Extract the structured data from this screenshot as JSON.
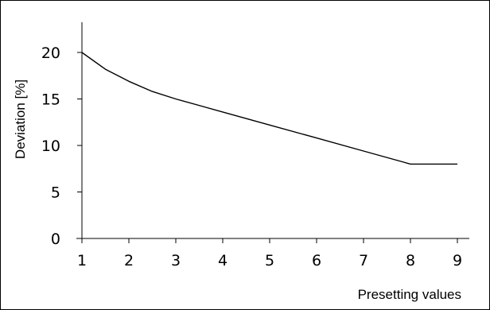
{
  "chart_data": {
    "type": "line",
    "title": "",
    "xlabel": "Presetting values",
    "ylabel": "Deviation [%]",
    "xlim": [
      1,
      9
    ],
    "ylim": [
      0,
      20
    ],
    "x_ticks": [
      "1",
      "2",
      "3",
      "4",
      "5",
      "6",
      "7",
      "8",
      "9"
    ],
    "y_ticks": [
      "0",
      "5",
      "10",
      "15",
      "20"
    ],
    "grid": false,
    "series": [
      {
        "x": [
          1,
          1.5,
          2,
          2.5,
          3,
          4,
          5,
          6,
          7,
          8,
          9
        ],
        "y": [
          20,
          18.2,
          16.9,
          15.8,
          15.0,
          13.6,
          12.2,
          10.8,
          9.4,
          8.0,
          8.0
        ]
      }
    ],
    "colors": {
      "line": "#000000",
      "axis": "#000000",
      "background": "#ffffff"
    }
  }
}
